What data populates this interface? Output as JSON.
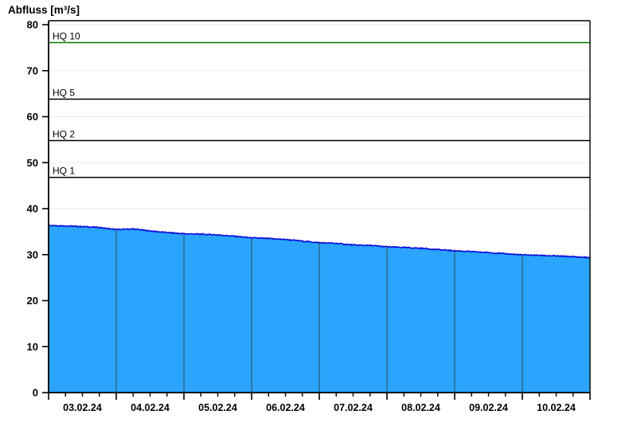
{
  "chart_data": {
    "type": "area",
    "title": "Abfluss [m³/s]",
    "ylabel": "Abfluss [m³/s]",
    "xlabel": "",
    "ylim": [
      0,
      80
    ],
    "ytick_step": 10,
    "y_tick_labels": [
      "0",
      "10",
      "20",
      "30",
      "40",
      "50",
      "60",
      "70",
      "80"
    ],
    "x_labels": [
      "03.02.24",
      "04.02.24",
      "05.02.24",
      "06.02.24",
      "07.02.24",
      "08.02.24",
      "09.02.24",
      "10.02.24"
    ],
    "x_range_days": 8,
    "sample_interval_hours": 6,
    "grid": "horizontal-light",
    "legend": "none",
    "series": [
      {
        "name": "Abfluss",
        "values": [
          36.4,
          36.25,
          36.1,
          35.9,
          35.45,
          35.6,
          35.15,
          34.8,
          34.55,
          34.45,
          34.3,
          34.0,
          33.65,
          33.5,
          33.3,
          32.95,
          32.6,
          32.45,
          32.1,
          32.0,
          31.7,
          31.55,
          31.4,
          31.1,
          30.85,
          30.65,
          30.45,
          30.2,
          29.95,
          29.85,
          29.7,
          29.55,
          29.35
        ]
      }
    ],
    "reference_lines": [
      {
        "label": "HQ 10",
        "value": 76.1,
        "color": "#007d00"
      },
      {
        "label": "HQ 5",
        "value": 63.8,
        "color": "#000000"
      },
      {
        "label": "HQ 2",
        "value": 54.8,
        "color": "#000000"
      },
      {
        "label": "HQ 1",
        "value": 46.8,
        "color": "#000000"
      }
    ]
  },
  "colors": {
    "area_fill": "#2aa4fc",
    "series_line": "#0808dc",
    "day_boundary_line": "#325f7d",
    "gridline": "#e9e9e9",
    "axis": "#000000",
    "background": "#ffffff"
  }
}
